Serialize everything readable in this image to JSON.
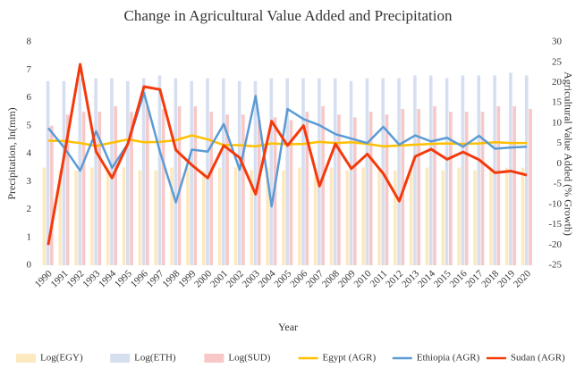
{
  "chart_data": {
    "type": "combo",
    "title": "Change in Agricultural Value Added and Precipitation",
    "x_label": "Year",
    "y_label": "Precipitation, ln(mm)",
    "y2_label": "Agricultural Value Added (% Growth)",
    "categories": [
      "1990",
      "1991",
      "1992",
      "1993",
      "1994",
      "1995",
      "1996",
      "1997",
      "1998",
      "1999",
      "2000",
      "2001",
      "2002",
      "2003",
      "2004",
      "2005",
      "2006",
      "2007",
      "2008",
      "2009",
      "2010",
      "2011",
      "2012",
      "2013",
      "2014",
      "2015",
      "2016",
      "2017",
      "2018",
      "2019",
      "2020"
    ],
    "ylim": [
      0,
      8
    ],
    "yticks": [
      0,
      1,
      2,
      3,
      4,
      5,
      6,
      7,
      8
    ],
    "y2lim": [
      -25,
      30
    ],
    "y2ticks": [
      -25,
      -20,
      -15,
      -10,
      -5,
      0,
      5,
      10,
      15,
      20,
      25,
      30
    ],
    "legend": "bottom",
    "series": [
      {
        "name": "Log(EGY)",
        "type": "bar",
        "color": "#fde9bf",
        "values": [
          3.5,
          3.4,
          3.4,
          3.5,
          3.5,
          3.5,
          3.4,
          3.4,
          3.5,
          3.5,
          3.4,
          3.5,
          3.5,
          3.4,
          3.5,
          3.4,
          3.5,
          3.4,
          3.5,
          3.4,
          3.5,
          3.5,
          3.4,
          3.5,
          3.5,
          3.4,
          3.5,
          3.4,
          3.5,
          3.5,
          3.5
        ]
      },
      {
        "name": "Log(ETH)",
        "type": "bar",
        "color": "#d6dff0",
        "values": [
          6.6,
          6.6,
          6.7,
          6.7,
          6.7,
          6.6,
          6.7,
          6.8,
          6.7,
          6.6,
          6.7,
          6.7,
          6.6,
          6.6,
          6.7,
          6.7,
          6.7,
          6.7,
          6.7,
          6.6,
          6.7,
          6.7,
          6.7,
          6.8,
          6.8,
          6.7,
          6.8,
          6.8,
          6.8,
          6.9,
          6.8
        ]
      },
      {
        "name": "Log(SUD)",
        "type": "bar",
        "color": "#f8c8c8",
        "values": [
          5.0,
          5.4,
          5.5,
          5.5,
          5.7,
          5.5,
          5.7,
          5.6,
          5.7,
          5.7,
          5.5,
          5.4,
          5.4,
          5.2,
          5.3,
          5.2,
          5.5,
          5.7,
          5.4,
          5.3,
          5.5,
          5.4,
          5.6,
          5.6,
          5.7,
          5.5,
          5.5,
          5.5,
          5.7,
          5.7,
          5.6
        ]
      },
      {
        "name": "Egypt (AGR)",
        "type": "line",
        "axis": "y2",
        "color": "#ffc000",
        "values": [
          5.7,
          5.6,
          5.1,
          4.4,
          5.2,
          6.0,
          5.3,
          5.4,
          5.8,
          7.0,
          6.0,
          4.6,
          4.6,
          4.3,
          5.0,
          4.8,
          4.9,
          5.4,
          5.1,
          5.3,
          4.9,
          4.3,
          4.5,
          4.7,
          4.9,
          5.0,
          4.9,
          5.0,
          5.3,
          5.1,
          5.1
        ]
      },
      {
        "name": "Ethiopia (AGR)",
        "type": "line",
        "axis": "y2",
        "color": "#5b9bd5",
        "values": [
          8.8,
          4.0,
          -1.7,
          8.0,
          -1.0,
          5.0,
          17.5,
          3.0,
          -9.5,
          3.5,
          3.0,
          9.8,
          -1.5,
          16.7,
          -10.5,
          13.5,
          11.0,
          9.5,
          7.3,
          6.2,
          5.1,
          9.1,
          4.7,
          7.0,
          5.5,
          6.4,
          4.2,
          6.9,
          3.7,
          4.0,
          4.2
        ]
      },
      {
        "name": "Sudan (AGR)",
        "type": "line",
        "axis": "y2",
        "color": "#f43a0c",
        "values": [
          -20.0,
          2.0,
          24.5,
          3.0,
          -3.5,
          5.0,
          19.0,
          18.3,
          3.4,
          -0.3,
          -3.5,
          4.5,
          1.5,
          -7.5,
          10.5,
          4.5,
          9.4,
          -5.5,
          4.9,
          -1.2,
          2.4,
          -2.4,
          -9.2,
          1.8,
          3.6,
          1.1,
          2.9,
          1.0,
          -2.2,
          -1.8,
          -2.8
        ]
      }
    ]
  }
}
